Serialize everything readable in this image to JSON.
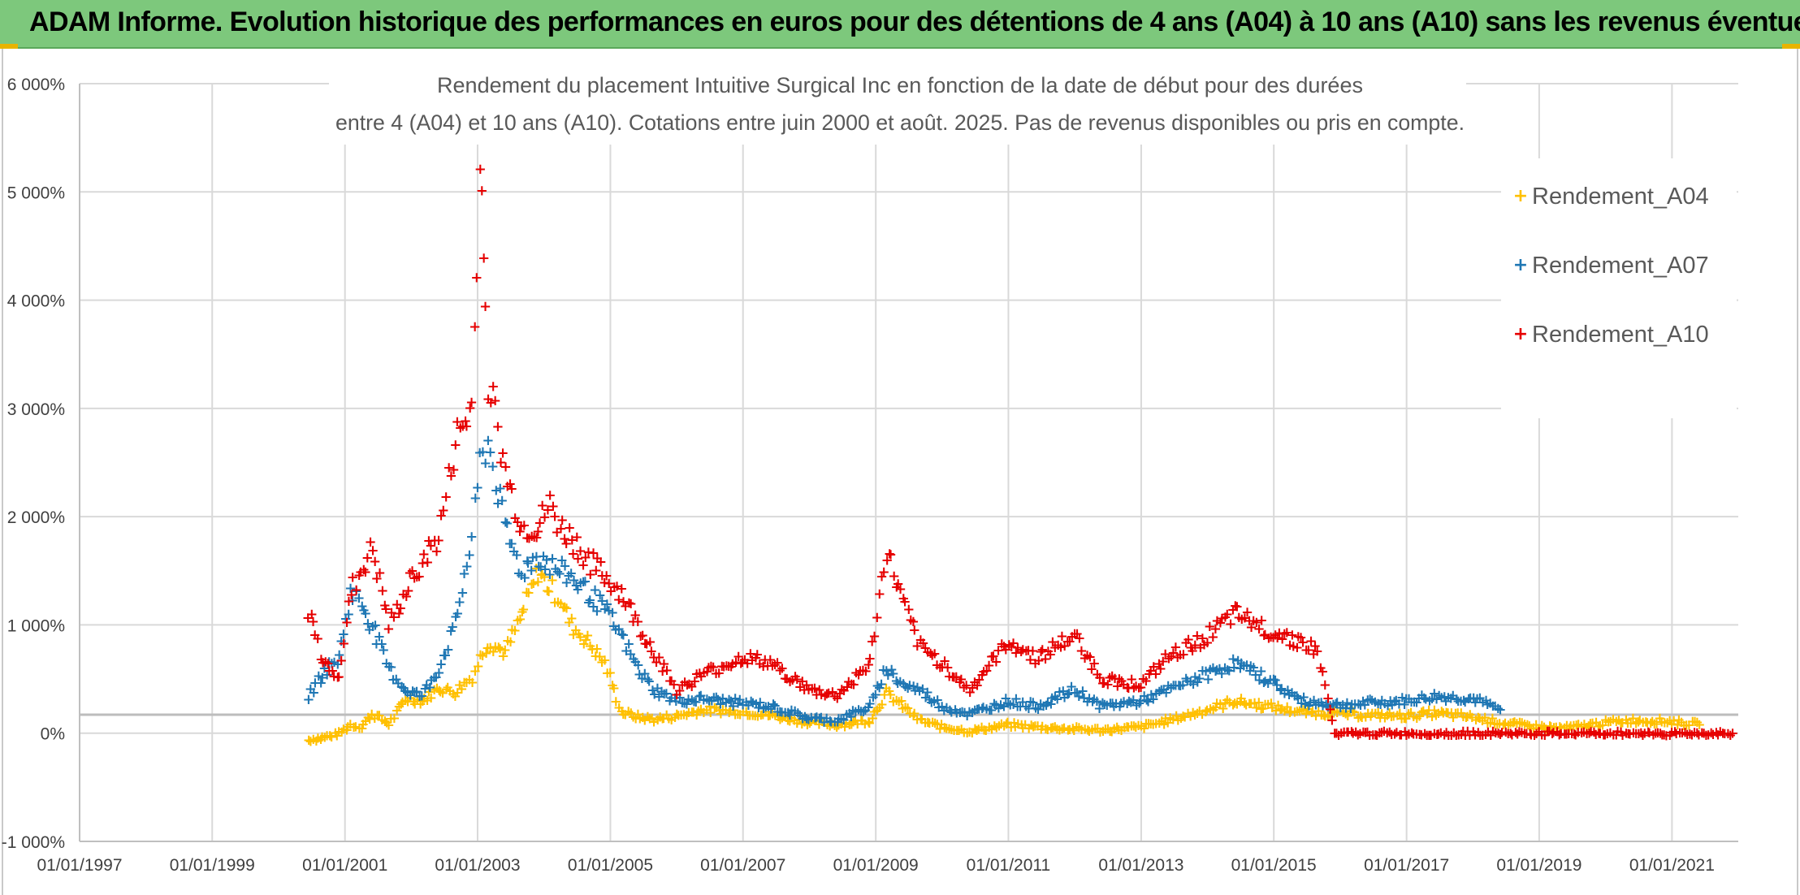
{
  "header": {
    "title": "ADAM Informe. Evolution historique des performances en euros pour des détentions de 4 ans (A04) à 10 ans (A10) sans les revenus éventuels"
  },
  "chart_data": {
    "type": "scatter",
    "title_lines": [
      "Rendement du placement Intuitive Surgical Inc en fonction de la date de début pour des durées",
      "entre 4 (A04) et 10 ans (A10). Cotations entre juin 2000 et août. 2025. Pas de revenus disponibles ou pris en compte."
    ],
    "xlabel": "",
    "ylabel": "",
    "x_range": [
      "1997-01-01",
      "2022-01-01"
    ],
    "ylim": [
      -1000,
      6000
    ],
    "x_ticks": [
      "01/01/1997",
      "01/01/1999",
      "01/01/2001",
      "01/01/2003",
      "01/01/2005",
      "01/01/2007",
      "01/01/2009",
      "01/01/2011",
      "01/01/2013",
      "01/01/2015",
      "01/01/2017",
      "01/01/2019",
      "01/01/2021"
    ],
    "y_ticks": [
      {
        "value": -1000,
        "label": "-1 000%"
      },
      {
        "value": 0,
        "label": "0%"
      },
      {
        "value": 1000,
        "label": "1 000%"
      },
      {
        "value": 2000,
        "label": "2 000%"
      },
      {
        "value": 3000,
        "label": "3 000%"
      },
      {
        "value": 4000,
        "label": "4 000%"
      },
      {
        "value": 5000,
        "label": "5 000%"
      },
      {
        "value": 6000,
        "label": "6 000%"
      }
    ],
    "reference_line_y": 170,
    "grid": true,
    "legend_position": "top-right",
    "marker": "+",
    "series": [
      {
        "name": "Rendement_A04",
        "color": "#ffc000",
        "points": [
          [
            "2000-06-15",
            -60
          ],
          [
            "2000-09-01",
            -40
          ],
          [
            "2000-12-01",
            0
          ],
          [
            "2001-02-01",
            80
          ],
          [
            "2001-04-01",
            60
          ],
          [
            "2001-06-01",
            180
          ],
          [
            "2001-09-01",
            90
          ],
          [
            "2001-12-01",
            320
          ],
          [
            "2002-03-01",
            300
          ],
          [
            "2002-06-01",
            420
          ],
          [
            "2002-09-01",
            380
          ],
          [
            "2002-12-01",
            520
          ],
          [
            "2003-01-15",
            700
          ],
          [
            "2003-03-01",
            850
          ],
          [
            "2003-06-01",
            750
          ],
          [
            "2003-09-01",
            1100
          ],
          [
            "2003-12-01",
            1500
          ],
          [
            "2004-02-01",
            1350
          ],
          [
            "2004-04-01",
            1250
          ],
          [
            "2004-06-01",
            1000
          ],
          [
            "2004-09-01",
            850
          ],
          [
            "2004-12-01",
            650
          ],
          [
            "2005-03-01",
            200
          ],
          [
            "2005-06-01",
            150
          ],
          [
            "2005-09-01",
            130
          ],
          [
            "2006-01-01",
            160
          ],
          [
            "2006-06-01",
            220
          ],
          [
            "2007-01-01",
            200
          ],
          [
            "2007-06-01",
            170
          ],
          [
            "2008-01-01",
            100
          ],
          [
            "2008-06-01",
            80
          ],
          [
            "2008-12-01",
            120
          ],
          [
            "2009-03-01",
            380
          ],
          [
            "2009-06-01",
            250
          ],
          [
            "2009-09-01",
            120
          ],
          [
            "2010-01-01",
            60
          ],
          [
            "2010-06-01",
            20
          ],
          [
            "2011-01-01",
            80
          ],
          [
            "2011-06-01",
            60
          ],
          [
            "2012-01-01",
            40
          ],
          [
            "2012-06-01",
            30
          ],
          [
            "2013-01-01",
            60
          ],
          [
            "2013-06-01",
            120
          ],
          [
            "2014-01-01",
            220
          ],
          [
            "2014-06-01",
            300
          ],
          [
            "2014-12-01",
            250
          ],
          [
            "2015-06-01",
            200
          ],
          [
            "2016-01-01",
            180
          ],
          [
            "2016-06-01",
            170
          ],
          [
            "2017-01-01",
            160
          ],
          [
            "2017-06-01",
            190
          ],
          [
            "2018-01-01",
            150
          ],
          [
            "2018-06-01",
            100
          ],
          [
            "2019-01-01",
            60
          ],
          [
            "2019-06-01",
            50
          ],
          [
            "2020-01-01",
            100
          ],
          [
            "2020-06-01",
            120
          ],
          [
            "2021-01-01",
            110
          ],
          [
            "2021-06-01",
            80
          ]
        ]
      },
      {
        "name": "Rendement_A07",
        "color": "#1f77b4",
        "points": [
          [
            "2000-06-15",
            350
          ],
          [
            "2000-09-01",
            550
          ],
          [
            "2000-12-01",
            700
          ],
          [
            "2001-02-01",
            1300
          ],
          [
            "2001-04-01",
            1200
          ],
          [
            "2001-06-01",
            1000
          ],
          [
            "2001-09-01",
            600
          ],
          [
            "2001-12-01",
            400
          ],
          [
            "2002-03-01",
            350
          ],
          [
            "2002-06-01",
            600
          ],
          [
            "2002-09-01",
            1000
          ],
          [
            "2002-12-01",
            1800
          ],
          [
            "2003-01-15",
            2500
          ],
          [
            "2003-03-01",
            2700
          ],
          [
            "2003-06-01",
            1900
          ],
          [
            "2003-09-01",
            1500
          ],
          [
            "2003-12-01",
            1650
          ],
          [
            "2004-02-01",
            1550
          ],
          [
            "2004-04-01",
            1500
          ],
          [
            "2004-06-01",
            1450
          ],
          [
            "2004-09-01",
            1300
          ],
          [
            "2004-12-01",
            1150
          ],
          [
            "2005-03-01",
            900
          ],
          [
            "2005-06-01",
            600
          ],
          [
            "2005-09-01",
            400
          ],
          [
            "2006-01-01",
            300
          ],
          [
            "2006-06-01",
            320
          ],
          [
            "2007-01-01",
            280
          ],
          [
            "2007-06-01",
            250
          ],
          [
            "2008-01-01",
            140
          ],
          [
            "2008-06-01",
            120
          ],
          [
            "2008-12-01",
            250
          ],
          [
            "2009-03-01",
            600
          ],
          [
            "2009-06-01",
            450
          ],
          [
            "2009-09-01",
            400
          ],
          [
            "2010-01-01",
            250
          ],
          [
            "2010-06-01",
            180
          ],
          [
            "2011-01-01",
            300
          ],
          [
            "2011-06-01",
            250
          ],
          [
            "2012-01-01",
            400
          ],
          [
            "2012-06-01",
            250
          ],
          [
            "2013-01-01",
            300
          ],
          [
            "2013-06-01",
            400
          ],
          [
            "2014-01-01",
            550
          ],
          [
            "2014-06-01",
            650
          ],
          [
            "2014-12-01",
            500
          ],
          [
            "2015-06-01",
            300
          ],
          [
            "2016-01-01",
            260
          ],
          [
            "2016-06-01",
            280
          ],
          [
            "2017-01-01",
            300
          ],
          [
            "2017-06-01",
            340
          ],
          [
            "2018-01-01",
            320
          ],
          [
            "2018-06-01",
            220
          ]
        ]
      },
      {
        "name": "Rendement_A10",
        "color": "#e60000",
        "points": [
          [
            "2000-06-15",
            1150
          ],
          [
            "2000-09-01",
            650
          ],
          [
            "2000-12-01",
            550
          ],
          [
            "2001-02-01",
            1300
          ],
          [
            "2001-04-01",
            1500
          ],
          [
            "2001-06-01",
            1700
          ],
          [
            "2001-09-01",
            1000
          ],
          [
            "2001-12-01",
            1300
          ],
          [
            "2002-03-01",
            1600
          ],
          [
            "2002-06-01",
            1800
          ],
          [
            "2002-09-01",
            2700
          ],
          [
            "2002-12-01",
            3000
          ],
          [
            "2003-01-15",
            5200
          ],
          [
            "2003-02-01",
            4600
          ],
          [
            "2003-03-01",
            3300
          ],
          [
            "2003-06-01",
            2400
          ],
          [
            "2003-09-01",
            1900
          ],
          [
            "2003-12-01",
            1900
          ],
          [
            "2004-02-01",
            2100
          ],
          [
            "2004-04-01",
            1900
          ],
          [
            "2004-06-01",
            1800
          ],
          [
            "2004-09-01",
            1600
          ],
          [
            "2004-12-01",
            1450
          ],
          [
            "2005-03-01",
            1300
          ],
          [
            "2005-06-01",
            1000
          ],
          [
            "2005-09-01",
            750
          ],
          [
            "2006-01-01",
            400
          ],
          [
            "2006-06-01",
            550
          ],
          [
            "2007-01-01",
            700
          ],
          [
            "2007-06-01",
            650
          ],
          [
            "2008-01-01",
            400
          ],
          [
            "2008-06-01",
            350
          ],
          [
            "2008-12-01",
            650
          ],
          [
            "2009-03-01",
            1700
          ],
          [
            "2009-06-01",
            1200
          ],
          [
            "2009-09-01",
            800
          ],
          [
            "2010-01-01",
            650
          ],
          [
            "2010-06-01",
            400
          ],
          [
            "2011-01-01",
            850
          ],
          [
            "2011-06-01",
            700
          ],
          [
            "2012-01-01",
            900
          ],
          [
            "2012-06-01",
            500
          ],
          [
            "2013-01-01",
            450
          ],
          [
            "2013-06-01",
            700
          ],
          [
            "2014-01-01",
            900
          ],
          [
            "2014-06-01",
            1100
          ],
          [
            "2014-12-01",
            950
          ],
          [
            "2015-06-01",
            850
          ],
          [
            "2015-09-01",
            750
          ],
          [
            "2015-12-01",
            0
          ],
          [
            "2016-06-01",
            0
          ],
          [
            "2017-01-01",
            0
          ],
          [
            "2017-06-01",
            0
          ],
          [
            "2018-01-01",
            0
          ],
          [
            "2018-06-01",
            0
          ],
          [
            "2019-01-01",
            0
          ],
          [
            "2019-06-01",
            0
          ],
          [
            "2020-01-01",
            0
          ],
          [
            "2020-06-01",
            0
          ],
          [
            "2021-01-01",
            0
          ],
          [
            "2021-06-01",
            0
          ],
          [
            "2021-12-01",
            0
          ]
        ]
      }
    ]
  }
}
